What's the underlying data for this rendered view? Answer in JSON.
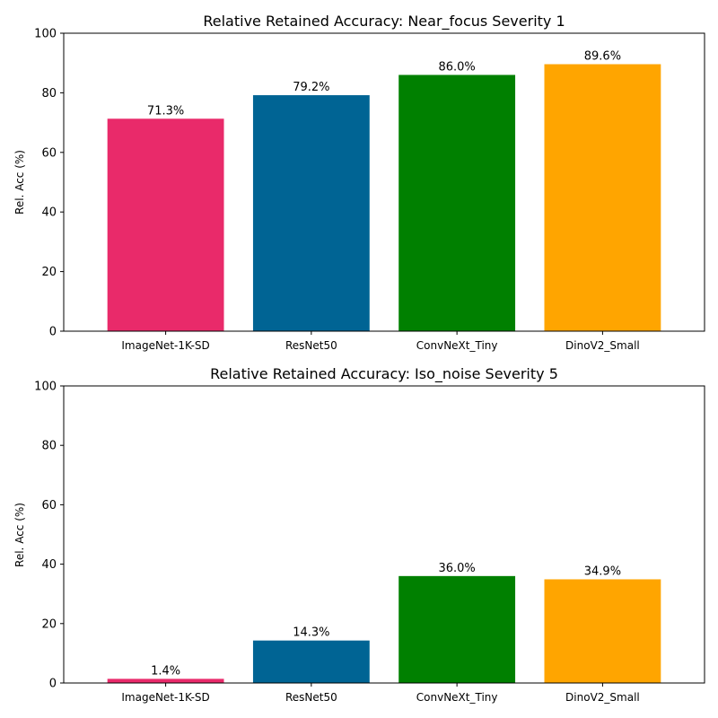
{
  "chart_data": [
    {
      "type": "bar",
      "title": "Relative Retained Accuracy: Near_focus Severity 1",
      "xlabel": "",
      "ylabel": "Rel. Acc (%)",
      "ylim": [
        0,
        100
      ],
      "yticks": [
        0,
        20,
        40,
        60,
        80,
        100
      ],
      "grid": false,
      "categories": [
        "ImageNet-1K-SD",
        "ResNet50",
        "ConvNeXt_Tiny",
        "DinoV2_Small"
      ],
      "values": [
        71.3,
        79.2,
        86.0,
        89.6
      ],
      "labels": [
        "71.3%",
        "79.2%",
        "86.0%",
        "89.6%"
      ],
      "colors": [
        "#e92a6a",
        "#006494",
        "#008000",
        "#ffa500"
      ]
    },
    {
      "type": "bar",
      "title": "Relative Retained Accuracy: Iso_noise Severity 5",
      "xlabel": "",
      "ylabel": "Rel. Acc (%)",
      "ylim": [
        0,
        100
      ],
      "yticks": [
        0,
        20,
        40,
        60,
        80,
        100
      ],
      "grid": false,
      "categories": [
        "ImageNet-1K-SD",
        "ResNet50",
        "ConvNeXt_Tiny",
        "DinoV2_Small"
      ],
      "values": [
        1.4,
        14.3,
        36.0,
        34.9
      ],
      "labels": [
        "1.4%",
        "14.3%",
        "36.0%",
        "34.9%"
      ],
      "colors": [
        "#e92a6a",
        "#006494",
        "#008000",
        "#ffa500"
      ]
    }
  ]
}
